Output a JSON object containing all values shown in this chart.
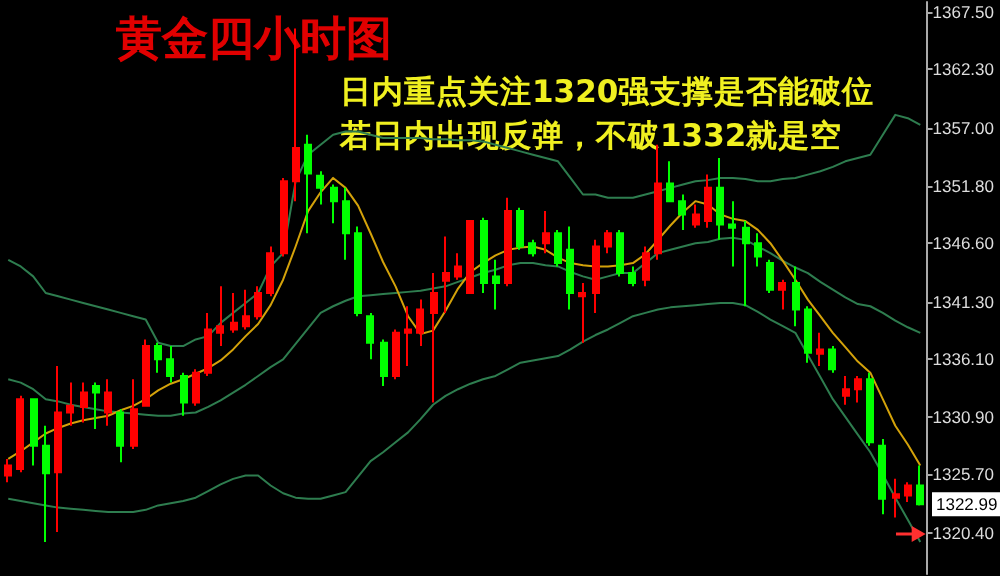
{
  "chart_data": {
    "type": "candlestick",
    "title": "黄金四小时图",
    "annotations": [
      "日内重点关注1320强支撑是否能破位",
      "若日内出现反弹，不破1332就是空",
      "1322.99"
    ],
    "categories": [
      null,
      null,
      null,
      null,
      null,
      null,
      null,
      null,
      null,
      null,
      null,
      null,
      null,
      null,
      null,
      null,
      null,
      null,
      null,
      null,
      null,
      null,
      null,
      null,
      null,
      null,
      null,
      null,
      null,
      null,
      null,
      null,
      null,
      null,
      null,
      null,
      null,
      null,
      null,
      null,
      null,
      null,
      null,
      null,
      null,
      null,
      null,
      null,
      null,
      null,
      null,
      null,
      null,
      null,
      null,
      null,
      null,
      null,
      null,
      null,
      null,
      null,
      null,
      null,
      null,
      null,
      null,
      null,
      null,
      null,
      null,
      null,
      null,
      null
    ],
    "ylim": [
      1316.7,
      1368.4
    ],
    "yticks": [
      {
        "value": 1320.4,
        "label": "1320.40"
      },
      {
        "value": 1325.7,
        "label": "1325.70"
      },
      {
        "value": 1330.9,
        "label": "1330.90"
      },
      {
        "value": 1336.1,
        "label": "1336.10"
      },
      {
        "value": 1341.3,
        "label": "1341.30"
      },
      {
        "value": 1346.6,
        "label": "1346.60"
      },
      {
        "value": 1351.8,
        "label": "1351.80"
      },
      {
        "value": 1357,
        "label": "1357.00"
      },
      {
        "value": 1362.3,
        "label": "1362.30"
      },
      {
        "value": 1367.5,
        "label": "1367.50"
      }
    ],
    "tick_labels": "y",
    "grid": false,
    "line_style": "solid",
    "series": [
      {
        "ohlc": [
          [
            1325.6,
            1327.1,
            1325.0,
            1326.5
          ],
          [
            1326.2,
            1332.8,
            1325.9,
            1332.5
          ],
          [
            1332.5,
            1332.5,
            1326.5,
            1328.3
          ],
          [
            1328.3,
            1330.1,
            1319.6,
            1325.8
          ],
          [
            1325.9,
            1335.5,
            1320.5,
            1331.3
          ],
          [
            1331.3,
            1334.0,
            1330.1,
            1331.9
          ],
          [
            1331.8,
            1334.0,
            1330.4,
            1333.1
          ],
          [
            1333.7,
            1334.0,
            1329.8,
            1333.1
          ],
          [
            1331.3,
            1334.3,
            1330.1,
            1333.1
          ],
          [
            1331.3,
            1331.6,
            1326.8,
            1328.3
          ],
          [
            1328.3,
            1334.3,
            1328.0,
            1331.6
          ],
          [
            1331.9,
            1337.9,
            1331.9,
            1337.3
          ],
          [
            1337.3,
            1337.6,
            1334.9,
            1336.1
          ],
          [
            1336.1,
            1337.3,
            1334.0,
            1334.6
          ],
          [
            1334.6,
            1334.9,
            1331.0,
            1332.2
          ],
          [
            1332.2,
            1335.2,
            1331.9,
            1334.9
          ],
          [
            1334.9,
            1340.3,
            1334.6,
            1338.8
          ],
          [
            1338.5,
            1342.7,
            1337.3,
            1339.1
          ],
          [
            1338.8,
            1342.1,
            1338.5,
            1339.4
          ],
          [
            1339.1,
            1342.4,
            1338.8,
            1340.0
          ],
          [
            1340.0,
            1342.7,
            1339.7,
            1342.1
          ],
          [
            1342.1,
            1346.3,
            1341.8,
            1345.7
          ],
          [
            1345.7,
            1352.5,
            1345.4,
            1352.2
          ],
          [
            1352.2,
            1366.0,
            1350.4,
            1355.2
          ],
          [
            1355.5,
            1356.4,
            1347.5,
            1352.9
          ],
          [
            1352.7,
            1353.1,
            1350.1,
            1351.6
          ],
          [
            1351.6,
            1351.9,
            1348.4,
            1350.4
          ],
          [
            1350.4,
            1351.6,
            1345.1,
            1347.5
          ],
          [
            1347.5,
            1348.1,
            1340.0,
            1340.3
          ],
          [
            1340.0,
            1340.3,
            1336.1,
            1337.6
          ],
          [
            1337.6,
            1337.9,
            1333.7,
            1334.6
          ],
          [
            1334.6,
            1338.8,
            1334.3,
            1338.5
          ],
          [
            1338.5,
            1340.9,
            1335.5,
            1338.8
          ],
          [
            1338.5,
            1341.5,
            1337.3,
            1340.6
          ],
          [
            1340.3,
            1343.9,
            1332.2,
            1342.1
          ],
          [
            1343.2,
            1347.2,
            1340.3,
            1343.9
          ],
          [
            1343.6,
            1345.7,
            1343.3,
            1344.5
          ],
          [
            1342.1,
            1348.6,
            1342.1,
            1348.6
          ],
          [
            1348.6,
            1348.9,
            1342.1,
            1343.0
          ],
          [
            1343.6,
            1345.1,
            1340.6,
            1343.0
          ],
          [
            1343.0,
            1350.7,
            1342.7,
            1349.5
          ],
          [
            1349.5,
            1349.8,
            1346.0,
            1346.3
          ],
          [
            1346.6,
            1346.9,
            1345.4,
            1345.7
          ],
          [
            1346.6,
            1349.5,
            1345.7,
            1347.5
          ],
          [
            1347.5,
            1347.8,
            1344.5,
            1344.8
          ],
          [
            1346.0,
            1348.1,
            1340.6,
            1342.1
          ],
          [
            1341.8,
            1343.0,
            1337.6,
            1342.1
          ],
          [
            1342.1,
            1346.9,
            1340.3,
            1346.3
          ],
          [
            1346.3,
            1347.8,
            1345.7,
            1347.5
          ],
          [
            1347.5,
            1347.8,
            1343.6,
            1343.9
          ],
          [
            1343.9,
            1344.5,
            1342.7,
            1343.0
          ],
          [
            1343.3,
            1346.3,
            1342.7,
            1345.7
          ],
          [
            1345.7,
            1355.5,
            1345.1,
            1352.0
          ],
          [
            1352.0,
            1354.0,
            1350.4,
            1350.4
          ],
          [
            1350.4,
            1351.0,
            1347.8,
            1349.2
          ],
          [
            1348.3,
            1350.1,
            1348.0,
            1349.2
          ],
          [
            1348.6,
            1352.8,
            1348.0,
            1351.6
          ],
          [
            1351.6,
            1354.3,
            1346.9,
            1348.3
          ],
          [
            1348.3,
            1350.4,
            1344.5,
            1348.0
          ],
          [
            1348.0,
            1348.6,
            1340.9,
            1346.6
          ],
          [
            1346.6,
            1347.5,
            1344.5,
            1345.4
          ],
          [
            1344.8,
            1345.1,
            1342.1,
            1342.4
          ],
          [
            1342.4,
            1343.3,
            1340.6,
            1343.0
          ],
          [
            1343.0,
            1344.5,
            1339.1,
            1340.6
          ],
          [
            1340.6,
            1340.9,
            1335.8,
            1336.7
          ],
          [
            1336.6,
            1338.5,
            1335.5,
            1337.0
          ],
          [
            1337.0,
            1337.3,
            1334.9,
            1335.2
          ],
          [
            1332.8,
            1334.6,
            1332.0,
            1333.4
          ],
          [
            1333.4,
            1334.6,
            1332.2,
            1334.3
          ],
          [
            1334.3,
            1334.9,
            1328.3,
            1328.6
          ],
          [
            1328.3,
            1328.9,
            1322.1,
            1323.5
          ],
          [
            1323.6,
            1325.3,
            1321.8,
            1323.9
          ],
          [
            1323.8,
            1325.0,
            1323.2,
            1324.7
          ],
          [
            1324.7,
            1326.5,
            1322.9,
            1323.0
          ]
        ],
        "colors": [
          "#ff0000",
          "#ff0000",
          "#00ff00",
          "#00ff00",
          "#ff0000",
          "#ff0000",
          "#ff0000",
          "#00ff00",
          "#ff0000",
          "#00ff00",
          "#ff0000",
          "#ff0000",
          "#00ff00",
          "#00ff00",
          "#00ff00",
          "#ff0000",
          "#ff0000",
          "#ff0000",
          "#ff0000",
          "#ff0000",
          "#ff0000",
          "#ff0000",
          "#ff0000",
          "#ff0000",
          "#00ff00",
          "#00ff00",
          "#00ff00",
          "#00ff00",
          "#00ff00",
          "#00ff00",
          "#00ff00",
          "#ff0000",
          "#ff0000",
          "#ff0000",
          "#ff0000",
          "#ff0000",
          "#ff0000",
          "#ff0000",
          "#00ff00",
          "#00ff00",
          "#ff0000",
          "#00ff00",
          "#00ff00",
          "#ff0000",
          "#00ff00",
          "#00ff00",
          "#ff0000",
          "#ff0000",
          "#ff0000",
          "#00ff00",
          "#00ff00",
          "#ff0000",
          "#ff0000",
          "#00ff00",
          "#00ff00",
          "#ff0000",
          "#ff0000",
          "#00ff00",
          "#00ff00",
          "#00ff00",
          "#00ff00",
          "#00ff00",
          "#ff0000",
          "#00ff00",
          "#00ff00",
          "#ff0000",
          "#00ff00",
          "#ff0000",
          "#ff0000",
          "#00ff00",
          "#00ff00",
          "#ff0000",
          "#ff0000",
          "#00ff00"
        ]
      },
      {
        "type": "line",
        "color": "#2e7d4f",
        "values": [
          1345.1,
          1344.5,
          1343.6,
          1342.1,
          1341.8,
          1341.5,
          1341.2,
          1340.9,
          1340.6,
          1340.3,
          1340.0,
          1339.7,
          1337.6,
          1337.3,
          1337.3,
          1337.9,
          1338.2,
          1339.4,
          1340.3,
          1341.2,
          1342.1,
          1344.5,
          1345.7,
          1352.2,
          1354.6,
          1355.5,
          1356.4,
          1356.7,
          1356.7,
          1356.4,
          1356.1,
          1356.1,
          1356.1,
          1356.1,
          1356.0,
          1356.0,
          1355.9,
          1355.9,
          1355.8,
          1355.5,
          1355.2,
          1354.9,
          1354.6,
          1354.3,
          1354.0,
          1352.5,
          1351.0,
          1351.0,
          1350.7,
          1350.7,
          1350.7,
          1351.0,
          1351.3,
          1351.6,
          1351.9,
          1352.2,
          1352.3,
          1352.5,
          1352.5,
          1352.4,
          1352.2,
          1352.2,
          1352.4,
          1352.5,
          1352.8,
          1353.1,
          1353.5,
          1354.0,
          1354.3,
          1354.6,
          1356.4,
          1358.2,
          1357.9,
          1357.3
        ]
      },
      {
        "type": "line",
        "color": "#2e7d4f",
        "values": [
          1334.3,
          1334.0,
          1333.4,
          1332.5,
          1332.3,
          1332.0,
          1331.8,
          1331.6,
          1331.4,
          1331.3,
          1331.2,
          1331.1,
          1331.0,
          1331.0,
          1331.2,
          1331.3,
          1331.8,
          1332.4,
          1333.1,
          1333.8,
          1334.6,
          1335.4,
          1336.1,
          1337.5,
          1338.9,
          1340.3,
          1340.9,
          1341.4,
          1341.8,
          1341.9,
          1342.0,
          1342.1,
          1342.2,
          1342.3,
          1342.5,
          1342.7,
          1343.1,
          1343.5,
          1343.9,
          1344.2,
          1344.6,
          1344.8,
          1344.8,
          1344.6,
          1344.5,
          1344.0,
          1343.6,
          1343.3,
          1343.6,
          1343.9,
          1343.9,
          1344.8,
          1345.7,
          1346.0,
          1346.3,
          1346.6,
          1346.7,
          1347.0,
          1347.1,
          1346.9,
          1346.3,
          1345.7,
          1345.0,
          1344.4,
          1343.9,
          1343.1,
          1342.4,
          1341.7,
          1341.1,
          1340.9,
          1340.3,
          1339.6,
          1339.0,
          1338.5
        ]
      },
      {
        "type": "line",
        "color": "#2e7d4f",
        "values": [
          1323.5,
          1323.3,
          1323.1,
          1322.9,
          1322.7,
          1322.6,
          1322.5,
          1322.4,
          1322.3,
          1322.3,
          1322.3,
          1322.5,
          1322.9,
          1323.1,
          1323.3,
          1323.6,
          1324.2,
          1324.8,
          1325.3,
          1325.6,
          1325.6,
          1324.7,
          1324.0,
          1323.6,
          1323.5,
          1323.5,
          1323.8,
          1324.1,
          1325.5,
          1326.9,
          1327.7,
          1328.6,
          1329.5,
          1330.7,
          1332.0,
          1332.8,
          1333.4,
          1333.9,
          1334.3,
          1334.6,
          1335.2,
          1335.8,
          1336.0,
          1336.2,
          1336.4,
          1337.0,
          1337.7,
          1338.3,
          1338.8,
          1339.4,
          1340.0,
          1340.3,
          1340.6,
          1340.8,
          1340.9,
          1341.0,
          1341.1,
          1341.2,
          1341.2,
          1341.0,
          1340.4,
          1339.7,
          1339.1,
          1338.5,
          1336.5,
          1334.5,
          1332.5,
          1330.9,
          1329.3,
          1327.7,
          1325.7,
          1323.6,
          1321.6,
          1319.6
        ]
      },
      {
        "type": "line",
        "color": "#d4a20a",
        "values": [
          1327.1,
          1327.8,
          1328.6,
          1329.4,
          1329.9,
          1330.3,
          1330.6,
          1330.8,
          1331.0,
          1331.5,
          1331.9,
          1332.5,
          1333.3,
          1333.9,
          1334.3,
          1334.8,
          1335.3,
          1336.0,
          1337.0,
          1338.2,
          1339.3,
          1341.0,
          1343.3,
          1346.3,
          1349.5,
          1351.2,
          1352.5,
          1351.6,
          1350.0,
          1347.5,
          1344.9,
          1342.7,
          1340.0,
          1338.4,
          1338.7,
          1340.5,
          1342.5,
          1344.0,
          1344.8,
          1345.5,
          1346.0,
          1346.2,
          1346.3,
          1346.0,
          1345.3,
          1344.8,
          1344.6,
          1344.5,
          1344.5,
          1344.6,
          1344.8,
          1345.6,
          1346.9,
          1348.2,
          1349.4,
          1350.4,
          1350.1,
          1349.2,
          1348.8,
          1348.6,
          1347.8,
          1346.6,
          1345.0,
          1343.3,
          1341.5,
          1340.0,
          1338.5,
          1337.2,
          1335.9,
          1334.9,
          1332.5,
          1330.1,
          1328.4,
          1326.5
        ]
      }
    ]
  }
}
